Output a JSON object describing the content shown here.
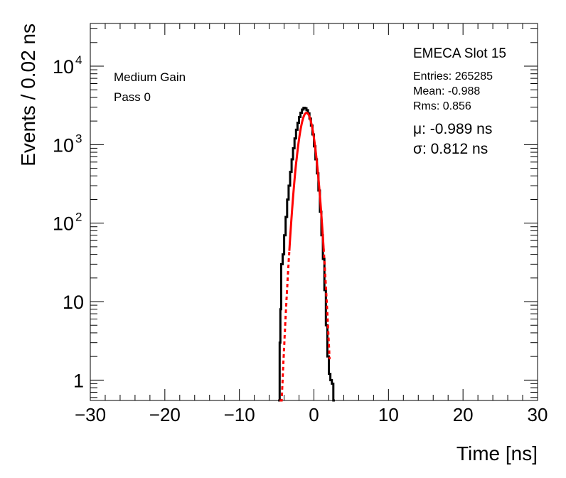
{
  "chart_data": {
    "type": "line",
    "title": "",
    "xlabel": "Time [ns]",
    "ylabel": "Events / 0.02 ns",
    "xlim": [
      -30,
      30
    ],
    "ylim": [
      0.55,
      35000
    ],
    "yscale": "log",
    "grid": false,
    "xticks": [
      -30,
      -20,
      -10,
      0,
      10,
      20,
      30
    ],
    "xtick_labels": [
      "−30",
      "−20",
      "−10",
      "0",
      "10",
      "20",
      "30"
    ],
    "ytick_labels": [
      {
        "value": 1,
        "base": "1",
        "exp": ""
      },
      {
        "value": 10,
        "base": "10",
        "exp": ""
      },
      {
        "value": 100,
        "base": "10",
        "exp": "2"
      },
      {
        "value": 1000,
        "base": "10",
        "exp": "3"
      },
      {
        "value": 10000,
        "base": "10",
        "exp": "4"
      }
    ],
    "annotations": {
      "gain": "Medium Gain",
      "pass": "Pass 0",
      "slot": "EMECA Slot 15",
      "entries": "Entries: 265285",
      "mean": "Mean: -0.988",
      "rms": "Rms: 0.856",
      "mu": "μ: -0.989 ns",
      "sigma": "σ: 0.812 ns"
    },
    "series": [
      {
        "color": "#000000",
        "style": "solid-step",
        "x": [
          -4.8,
          -4.6,
          -4.5,
          -4.4,
          -4.2,
          -4.0,
          -3.8,
          -3.6,
          -3.4,
          -3.2,
          -3.0,
          -2.8,
          -2.6,
          -2.4,
          -2.2,
          -2.0,
          -1.8,
          -1.6,
          -1.4,
          -1.2,
          -1.0,
          -0.8,
          -0.6,
          -0.4,
          -0.2,
          0.0,
          0.2,
          0.4,
          0.6,
          0.8,
          1.0,
          1.2,
          1.4,
          1.6,
          1.8,
          2.0,
          2.2,
          2.4,
          2.6,
          2.8
        ],
        "y": [
          0.55,
          3,
          8,
          30,
          40,
          70,
          120,
          200,
          300,
          450,
          650,
          900,
          1200,
          1550,
          1900,
          2250,
          2550,
          2800,
          2950,
          2900,
          2750,
          2500,
          2150,
          1750,
          1350,
          950,
          650,
          430,
          260,
          140,
          70,
          35,
          14,
          5,
          2,
          1.2,
          1,
          0.9,
          0.55,
          0.55
        ]
      },
      {
        "color": "#ff0000",
        "style": "solid-fit",
        "mu": -0.989,
        "sigma": 0.812,
        "amplitude": 2550,
        "fit_range": [
          -3.3,
          1.3
        ],
        "dashed_range": [
          -4.6,
          2.1
        ]
      }
    ]
  }
}
